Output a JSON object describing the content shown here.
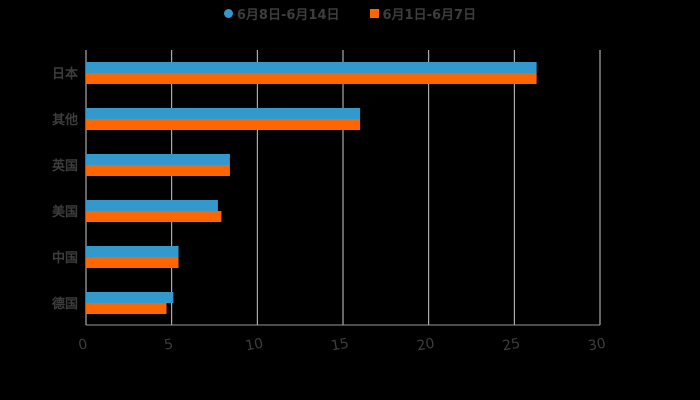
{
  "chart_data": {
    "type": "bar",
    "orientation": "horizontal",
    "title": "",
    "xlabel": "",
    "ylabel": "",
    "categories": [
      "日本",
      "其他",
      "英国",
      "美国",
      "中国",
      "德国"
    ],
    "series": [
      {
        "name": "6月8日-6月14日",
        "color": "#3399cc",
        "values": [
          26.3,
          16.0,
          8.4,
          7.7,
          5.4,
          5.1
        ]
      },
      {
        "name": "6月1日-6月7日",
        "color": "#ff6600",
        "values": [
          26.3,
          16.0,
          8.4,
          7.9,
          5.4,
          4.7
        ]
      }
    ],
    "xlim": [
      0,
      30
    ],
    "xticks": [
      0,
      5,
      10,
      15,
      20,
      25,
      30
    ],
    "grid": true,
    "legend_position": "top"
  },
  "colors": {
    "background": "#000000",
    "grid": "#cccccc",
    "text": "#3d3d3d"
  }
}
